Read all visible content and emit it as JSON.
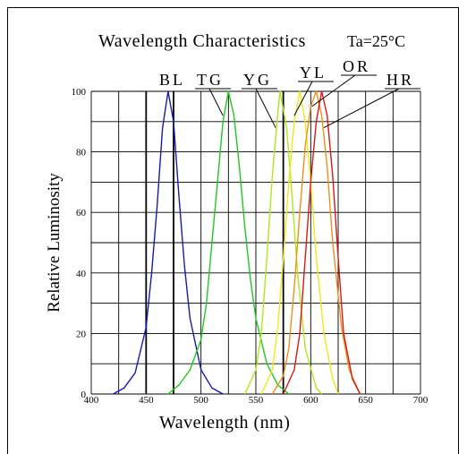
{
  "chart_data": {
    "type": "line",
    "title": "Wavelength Characteristics",
    "condition": "Ta=25°C",
    "xlabel": "Wavelength (nm)",
    "ylabel": "Relative Luminosity",
    "xlim": [
      400,
      700
    ],
    "ylim": [
      0,
      100
    ],
    "x_ticks": [
      "400",
      "450",
      "500",
      "550",
      "600",
      "650",
      "700"
    ],
    "y_ticks": [
      "0",
      "20",
      "40",
      "60",
      "80",
      "100"
    ],
    "grid": true,
    "series": [
      {
        "name": "BL",
        "color": "#1a1aa8",
        "peak": 470,
        "width": 24,
        "points": [
          [
            420,
            0
          ],
          [
            430,
            2
          ],
          [
            440,
            7
          ],
          [
            450,
            22
          ],
          [
            455,
            40
          ],
          [
            460,
            62
          ],
          [
            465,
            88
          ],
          [
            470,
            100
          ],
          [
            475,
            90
          ],
          [
            480,
            65
          ],
          [
            485,
            42
          ],
          [
            490,
            25
          ],
          [
            500,
            8
          ],
          [
            510,
            2
          ],
          [
            520,
            0
          ]
        ]
      },
      {
        "name": "TG",
        "color": "#22c822",
        "peak": 525,
        "width": 30,
        "points": [
          [
            470,
            0
          ],
          [
            480,
            3
          ],
          [
            490,
            8
          ],
          [
            500,
            18
          ],
          [
            505,
            30
          ],
          [
            510,
            50
          ],
          [
            515,
            70
          ],
          [
            520,
            90
          ],
          [
            525,
            100
          ],
          [
            530,
            92
          ],
          [
            535,
            75
          ],
          [
            540,
            55
          ],
          [
            545,
            38
          ],
          [
            550,
            25
          ],
          [
            560,
            10
          ],
          [
            570,
            3
          ],
          [
            580,
            0
          ]
        ]
      },
      {
        "name": "YG",
        "color": "#aee81c",
        "peak": 572,
        "width": 25,
        "points": [
          [
            540,
            0
          ],
          [
            550,
            8
          ],
          [
            555,
            20
          ],
          [
            560,
            45
          ],
          [
            565,
            72
          ],
          [
            570,
            93
          ],
          [
            572,
            100
          ],
          [
            578,
            88
          ],
          [
            582,
            70
          ],
          [
            588,
            40
          ],
          [
            595,
            15
          ],
          [
            605,
            2
          ],
          [
            610,
            0
          ]
        ]
      },
      {
        "name": "YL",
        "color": "#f0e818",
        "peak": 590,
        "width": 25,
        "points": [
          [
            555,
            0
          ],
          [
            565,
            8
          ],
          [
            570,
            22
          ],
          [
            575,
            45
          ],
          [
            580,
            70
          ],
          [
            585,
            90
          ],
          [
            590,
            100
          ],
          [
            595,
            90
          ],
          [
            600,
            70
          ],
          [
            605,
            45
          ],
          [
            612,
            20
          ],
          [
            620,
            5
          ],
          [
            625,
            0
          ]
        ]
      },
      {
        "name": "OR",
        "color": "#f09018",
        "peak": 605,
        "width": 26,
        "points": [
          [
            565,
            0
          ],
          [
            575,
            6
          ],
          [
            580,
            15
          ],
          [
            585,
            35
          ],
          [
            590,
            60
          ],
          [
            595,
            82
          ],
          [
            600,
            95
          ],
          [
            605,
            100
          ],
          [
            610,
            92
          ],
          [
            615,
            75
          ],
          [
            620,
            50
          ],
          [
            628,
            22
          ],
          [
            635,
            8
          ],
          [
            645,
            0
          ]
        ]
      },
      {
        "name": "HR",
        "color": "#d81818",
        "peak": 610,
        "width": 24,
        "points": [
          [
            575,
            0
          ],
          [
            585,
            8
          ],
          [
            590,
            20
          ],
          [
            595,
            45
          ],
          [
            600,
            70
          ],
          [
            605,
            90
          ],
          [
            610,
            100
          ],
          [
            615,
            92
          ],
          [
            620,
            72
          ],
          [
            625,
            45
          ],
          [
            630,
            20
          ],
          [
            638,
            5
          ],
          [
            645,
            0
          ]
        ]
      }
    ]
  }
}
